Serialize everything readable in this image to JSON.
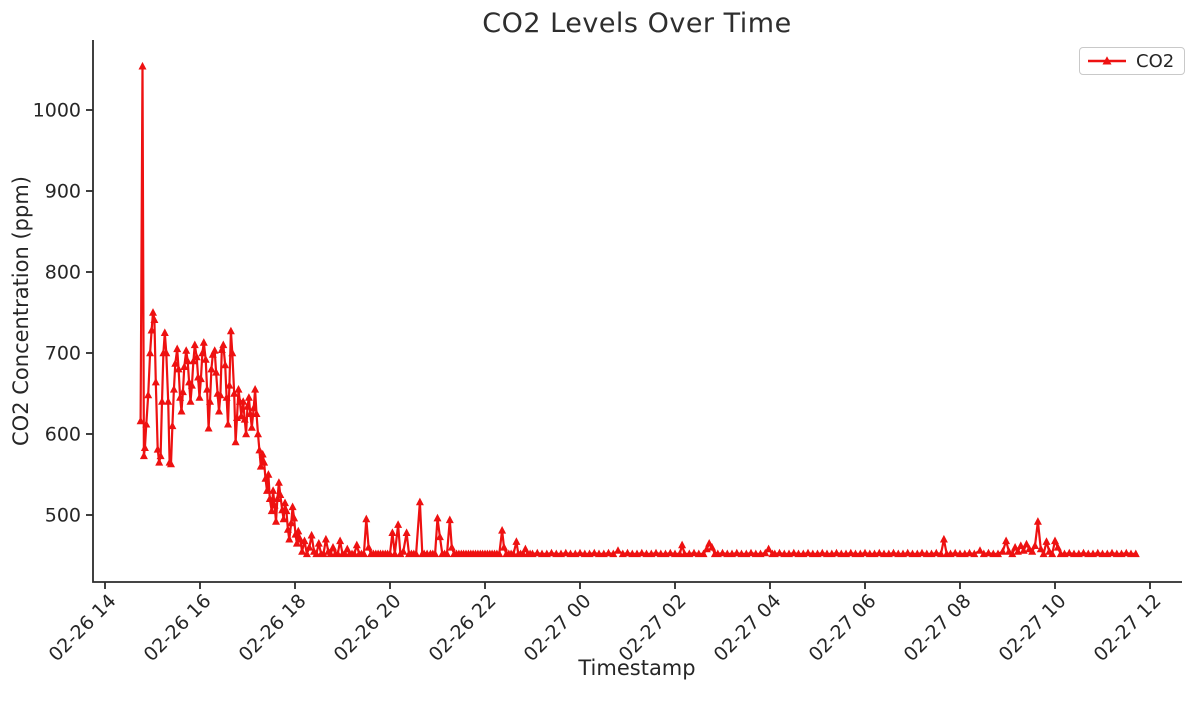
{
  "figure": {
    "background": "#ffffff",
    "text_color": "#262626",
    "spine_color": "#2b2b2b"
  },
  "chart_data": {
    "type": "line",
    "title": "CO2 Levels Over Time",
    "xlabel": "Timestamp",
    "ylabel": "CO2 Concentration (ppm)",
    "series_name": "CO2",
    "line_color": "#ee1111",
    "marker": "triangle-up",
    "legend_position": "upper right",
    "grid": false,
    "y_ticks": [
      500,
      600,
      700,
      800,
      900,
      1000
    ],
    "ylim": [
      417,
      1086
    ],
    "x_tick_hours": [
      0,
      2,
      4,
      6,
      8,
      10,
      12,
      14,
      16,
      18,
      20,
      22
    ],
    "x_tick_labels": [
      "02-26 14",
      "02-26 16",
      "02-26 18",
      "02-26 20",
      "02-26 22",
      "02-27 00",
      "02-27 02",
      "02-27 04",
      "02-27 06",
      "02-27 08",
      "02-27 10",
      "02-27 12"
    ],
    "x_unit": "hours since 02-26 14:00",
    "xlim_hours": [
      -0.25,
      22.7
    ],
    "points": [
      [
        0.75,
        616
      ],
      [
        0.79,
        1054
      ],
      [
        0.82,
        573
      ],
      [
        0.84,
        583
      ],
      [
        0.87,
        612
      ],
      [
        0.91,
        648
      ],
      [
        0.95,
        700
      ],
      [
        0.98,
        728
      ],
      [
        1.01,
        750
      ],
      [
        1.04,
        741
      ],
      [
        1.07,
        664
      ],
      [
        1.11,
        581
      ],
      [
        1.14,
        565
      ],
      [
        1.17,
        573
      ],
      [
        1.2,
        640
      ],
      [
        1.23,
        700
      ],
      [
        1.26,
        725
      ],
      [
        1.29,
        700
      ],
      [
        1.33,
        640
      ],
      [
        1.36,
        565
      ],
      [
        1.39,
        563
      ],
      [
        1.42,
        610
      ],
      [
        1.45,
        655
      ],
      [
        1.48,
        687
      ],
      [
        1.52,
        705
      ],
      [
        1.55,
        680
      ],
      [
        1.58,
        645
      ],
      [
        1.61,
        628
      ],
      [
        1.64,
        652
      ],
      [
        1.67,
        683
      ],
      [
        1.71,
        703
      ],
      [
        1.74,
        690
      ],
      [
        1.77,
        664
      ],
      [
        1.8,
        640
      ],
      [
        1.83,
        660
      ],
      [
        1.86,
        690
      ],
      [
        1.89,
        710
      ],
      [
        1.93,
        695
      ],
      [
        1.96,
        670
      ],
      [
        1.99,
        645
      ],
      [
        2.02,
        668
      ],
      [
        2.05,
        700
      ],
      [
        2.08,
        713
      ],
      [
        2.12,
        692
      ],
      [
        2.15,
        655
      ],
      [
        2.18,
        607
      ],
      [
        2.21,
        640
      ],
      [
        2.24,
        680
      ],
      [
        2.27,
        698
      ],
      [
        2.31,
        703
      ],
      [
        2.34,
        676
      ],
      [
        2.37,
        650
      ],
      [
        2.4,
        628
      ],
      [
        2.43,
        648
      ],
      [
        2.46,
        704
      ],
      [
        2.49,
        710
      ],
      [
        2.53,
        685
      ],
      [
        2.56,
        645
      ],
      [
        2.59,
        612
      ],
      [
        2.62,
        660
      ],
      [
        2.65,
        727
      ],
      [
        2.68,
        700
      ],
      [
        2.72,
        650
      ],
      [
        2.75,
        590
      ],
      [
        2.78,
        620
      ],
      [
        2.81,
        655
      ],
      [
        2.84,
        640
      ],
      [
        2.87,
        622
      ],
      [
        2.91,
        640
      ],
      [
        2.94,
        618
      ],
      [
        2.97,
        600
      ],
      [
        3.0,
        634
      ],
      [
        3.03,
        645
      ],
      [
        3.06,
        625
      ],
      [
        3.09,
        608
      ],
      [
        3.13,
        632
      ],
      [
        3.16,
        655
      ],
      [
        3.19,
        625
      ],
      [
        3.22,
        600
      ],
      [
        3.25,
        580
      ],
      [
        3.28,
        560
      ],
      [
        3.32,
        575
      ],
      [
        3.35,
        565
      ],
      [
        3.38,
        545
      ],
      [
        3.41,
        530
      ],
      [
        3.44,
        550
      ],
      [
        3.47,
        520
      ],
      [
        3.51,
        505
      ],
      [
        3.54,
        530
      ],
      [
        3.57,
        512
      ],
      [
        3.6,
        492
      ],
      [
        3.63,
        520
      ],
      [
        3.66,
        540
      ],
      [
        3.69,
        525
      ],
      [
        3.73,
        506
      ],
      [
        3.76,
        495
      ],
      [
        3.79,
        515
      ],
      [
        3.82,
        505
      ],
      [
        3.85,
        482
      ],
      [
        3.88,
        470
      ],
      [
        3.92,
        490
      ],
      [
        3.95,
        510
      ],
      [
        3.98,
        496
      ],
      [
        4.01,
        476
      ],
      [
        4.04,
        465
      ],
      [
        4.07,
        480
      ],
      [
        4.11,
        470
      ],
      [
        4.15,
        455
      ],
      [
        4.2,
        468
      ],
      [
        4.25,
        452
      ],
      [
        4.3,
        460
      ],
      [
        4.35,
        475
      ],
      [
        4.4,
        455
      ],
      [
        4.45,
        452
      ],
      [
        4.5,
        465
      ],
      [
        4.55,
        452
      ],
      [
        4.6,
        452
      ],
      [
        4.65,
        470
      ],
      [
        4.7,
        455
      ],
      [
        4.75,
        452
      ],
      [
        4.8,
        460
      ],
      [
        4.85,
        452
      ],
      [
        4.9,
        452
      ],
      [
        4.95,
        468
      ],
      [
        5.0,
        452
      ],
      [
        5.05,
        452
      ],
      [
        5.1,
        458
      ],
      [
        5.15,
        452
      ],
      [
        5.2,
        452
      ],
      [
        5.25,
        452
      ],
      [
        5.3,
        463
      ],
      [
        5.35,
        452
      ],
      [
        5.4,
        452
      ],
      [
        5.45,
        452
      ],
      [
        5.5,
        495
      ],
      [
        5.55,
        460
      ],
      [
        5.6,
        452
      ],
      [
        5.65,
        452
      ],
      [
        5.7,
        452
      ],
      [
        5.75,
        452
      ],
      [
        5.8,
        452
      ],
      [
        5.85,
        452
      ],
      [
        5.9,
        452
      ],
      [
        5.95,
        452
      ],
      [
        6.0,
        452
      ],
      [
        6.05,
        478
      ],
      [
        6.1,
        452
      ],
      [
        6.17,
        488
      ],
      [
        6.22,
        452
      ],
      [
        6.28,
        455
      ],
      [
        6.35,
        478
      ],
      [
        6.4,
        452
      ],
      [
        6.45,
        452
      ],
      [
        6.5,
        452
      ],
      [
        6.55,
        452
      ],
      [
        6.63,
        516
      ],
      [
        6.68,
        452
      ],
      [
        6.72,
        452
      ],
      [
        6.78,
        452
      ],
      [
        6.85,
        452
      ],
      [
        6.9,
        452
      ],
      [
        6.95,
        452
      ],
      [
        7.0,
        496
      ],
      [
        7.05,
        473
      ],
      [
        7.1,
        452
      ],
      [
        7.15,
        452
      ],
      [
        7.2,
        452
      ],
      [
        7.26,
        494
      ],
      [
        7.3,
        460
      ],
      [
        7.35,
        452
      ],
      [
        7.4,
        452
      ],
      [
        7.45,
        452
      ],
      [
        7.5,
        452
      ],
      [
        7.55,
        452
      ],
      [
        7.6,
        452
      ],
      [
        7.65,
        452
      ],
      [
        7.7,
        452
      ],
      [
        7.75,
        452
      ],
      [
        7.8,
        452
      ],
      [
        7.85,
        452
      ],
      [
        7.9,
        452
      ],
      [
        7.95,
        452
      ],
      [
        8.0,
        452
      ],
      [
        8.05,
        452
      ],
      [
        8.1,
        452
      ],
      [
        8.15,
        452
      ],
      [
        8.2,
        452
      ],
      [
        8.25,
        452
      ],
      [
        8.3,
        452
      ],
      [
        8.36,
        481
      ],
      [
        8.4,
        460
      ],
      [
        8.45,
        452
      ],
      [
        8.5,
        452
      ],
      [
        8.55,
        452
      ],
      [
        8.6,
        452
      ],
      [
        8.66,
        467
      ],
      [
        8.7,
        452
      ],
      [
        8.75,
        452
      ],
      [
        8.8,
        452
      ],
      [
        8.85,
        458
      ],
      [
        8.9,
        452
      ],
      [
        8.95,
        452
      ],
      [
        9.0,
        452
      ],
      [
        9.1,
        453
      ],
      [
        9.2,
        452
      ],
      [
        9.3,
        452
      ],
      [
        9.4,
        453
      ],
      [
        9.5,
        452
      ],
      [
        9.6,
        452
      ],
      [
        9.7,
        453
      ],
      [
        9.8,
        452
      ],
      [
        9.9,
        452
      ],
      [
        10.0,
        453
      ],
      [
        10.1,
        452
      ],
      [
        10.2,
        452
      ],
      [
        10.3,
        453
      ],
      [
        10.4,
        452
      ],
      [
        10.5,
        452
      ],
      [
        10.6,
        453
      ],
      [
        10.7,
        452
      ],
      [
        10.8,
        456
      ],
      [
        10.9,
        452
      ],
      [
        11.0,
        453
      ],
      [
        11.1,
        452
      ],
      [
        11.2,
        452
      ],
      [
        11.3,
        453
      ],
      [
        11.4,
        452
      ],
      [
        11.5,
        452
      ],
      [
        11.6,
        453
      ],
      [
        11.7,
        452
      ],
      [
        11.8,
        452
      ],
      [
        11.9,
        453
      ],
      [
        12.0,
        452
      ],
      [
        12.1,
        452
      ],
      [
        12.15,
        463
      ],
      [
        12.2,
        452
      ],
      [
        12.3,
        452
      ],
      [
        12.4,
        453
      ],
      [
        12.5,
        452
      ],
      [
        12.6,
        452
      ],
      [
        12.67,
        458
      ],
      [
        12.72,
        465
      ],
      [
        12.78,
        460
      ],
      [
        12.84,
        452
      ],
      [
        12.9,
        452
      ],
      [
        13.0,
        453
      ],
      [
        13.1,
        452
      ],
      [
        13.2,
        452
      ],
      [
        13.3,
        453
      ],
      [
        13.4,
        452
      ],
      [
        13.5,
        452
      ],
      [
        13.6,
        453
      ],
      [
        13.7,
        452
      ],
      [
        13.8,
        452
      ],
      [
        13.9,
        453
      ],
      [
        13.97,
        458
      ],
      [
        14.05,
        452
      ],
      [
        14.1,
        452
      ],
      [
        14.2,
        453
      ],
      [
        14.3,
        452
      ],
      [
        14.4,
        452
      ],
      [
        14.5,
        453
      ],
      [
        14.6,
        452
      ],
      [
        14.7,
        452
      ],
      [
        14.8,
        453
      ],
      [
        14.9,
        452
      ],
      [
        15.0,
        452
      ],
      [
        15.1,
        453
      ],
      [
        15.2,
        452
      ],
      [
        15.3,
        452
      ],
      [
        15.4,
        453
      ],
      [
        15.5,
        452
      ],
      [
        15.6,
        452
      ],
      [
        15.7,
        453
      ],
      [
        15.8,
        452
      ],
      [
        15.9,
        452
      ],
      [
        16.0,
        453
      ],
      [
        16.1,
        452
      ],
      [
        16.2,
        452
      ],
      [
        16.3,
        453
      ],
      [
        16.4,
        452
      ],
      [
        16.5,
        452
      ],
      [
        16.6,
        453
      ],
      [
        16.7,
        452
      ],
      [
        16.8,
        452
      ],
      [
        16.9,
        453
      ],
      [
        17.0,
        452
      ],
      [
        17.1,
        452
      ],
      [
        17.2,
        453
      ],
      [
        17.3,
        452
      ],
      [
        17.4,
        452
      ],
      [
        17.5,
        453
      ],
      [
        17.6,
        452
      ],
      [
        17.66,
        470
      ],
      [
        17.72,
        452
      ],
      [
        17.8,
        452
      ],
      [
        17.9,
        453
      ],
      [
        18.0,
        452
      ],
      [
        18.1,
        452
      ],
      [
        18.2,
        453
      ],
      [
        18.3,
        452
      ],
      [
        18.42,
        456
      ],
      [
        18.5,
        452
      ],
      [
        18.6,
        453
      ],
      [
        18.7,
        452
      ],
      [
        18.8,
        452
      ],
      [
        18.9,
        455
      ],
      [
        18.97,
        468
      ],
      [
        19.03,
        455
      ],
      [
        19.1,
        452
      ],
      [
        19.16,
        460
      ],
      [
        19.22,
        455
      ],
      [
        19.28,
        462
      ],
      [
        19.34,
        456
      ],
      [
        19.4,
        464
      ],
      [
        19.46,
        458
      ],
      [
        19.52,
        455
      ],
      [
        19.58,
        462
      ],
      [
        19.64,
        492
      ],
      [
        19.7,
        458
      ],
      [
        19.76,
        452
      ],
      [
        19.82,
        467
      ],
      [
        19.88,
        455
      ],
      [
        19.94,
        452
      ],
      [
        20.0,
        468
      ],
      [
        20.06,
        460
      ],
      [
        20.12,
        452
      ],
      [
        20.2,
        452
      ],
      [
        20.3,
        453
      ],
      [
        20.4,
        452
      ],
      [
        20.5,
        452
      ],
      [
        20.6,
        453
      ],
      [
        20.7,
        452
      ],
      [
        20.8,
        452
      ],
      [
        20.9,
        453
      ],
      [
        21.0,
        452
      ],
      [
        21.1,
        452
      ],
      [
        21.2,
        453
      ],
      [
        21.3,
        452
      ],
      [
        21.4,
        452
      ],
      [
        21.5,
        453
      ],
      [
        21.6,
        452
      ],
      [
        21.7,
        452
      ]
    ]
  }
}
